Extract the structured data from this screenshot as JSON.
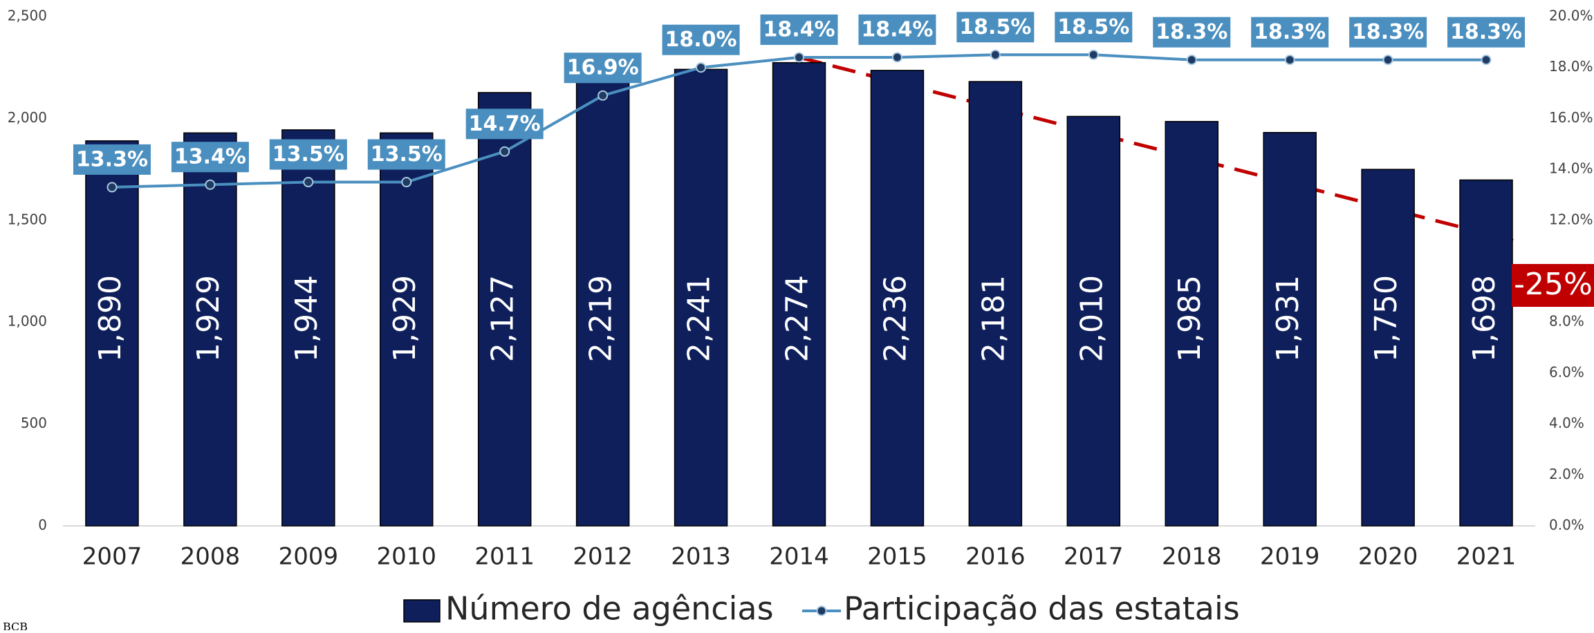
{
  "chart_data": {
    "type": "bar-line",
    "categories": [
      "2007",
      "2008",
      "2009",
      "2010",
      "2011",
      "2012",
      "2013",
      "2014",
      "2015",
      "2016",
      "2017",
      "2018",
      "2019",
      "2020",
      "2021"
    ],
    "series": [
      {
        "name": "Número de agências",
        "type": "bar",
        "color": "#0e1f5b",
        "values": [
          1890,
          1929,
          1944,
          1929,
          2127,
          2219,
          2241,
          2274,
          2236,
          2181,
          2010,
          1985,
          1931,
          1750,
          1698
        ],
        "value_labels": [
          "1,890",
          "1,929",
          "1,944",
          "1,929",
          "2,127",
          "2,219",
          "2,241",
          "2,274",
          "2,236",
          "2,181",
          "2,010",
          "1,985",
          "1,931",
          "1,750",
          "1,698"
        ]
      },
      {
        "name": "Participação das estatais",
        "type": "line",
        "axis": "y2",
        "color": "#4a8fbf",
        "values": [
          13.3,
          13.4,
          13.5,
          13.5,
          14.7,
          16.9,
          18.0,
          18.4,
          18.4,
          18.5,
          18.5,
          18.3,
          18.3,
          18.3,
          18.3
        ],
        "value_labels": [
          "13.3%",
          "13.4%",
          "13.5%",
          "13.5%",
          "14.7%",
          "16.9%",
          "18.0%",
          "18.4%",
          "18.4%",
          "18.5%",
          "18.5%",
          "18.3%",
          "18.3%",
          "18.3%",
          "18.3%"
        ]
      }
    ],
    "ylim": [
      0,
      2500
    ],
    "yticks": [
      0,
      500,
      {
        "value": 1000,
        "label": "1,000"
      },
      {
        "value": 1500,
        "label": "1,500"
      },
      {
        "value": 2000,
        "label": "2,000"
      },
      {
        "value": 2500,
        "label": "2,500"
      }
    ],
    "y2lim": [
      0,
      20
    ],
    "y2ticks": [
      {
        "value": 0,
        "label": "0.0%"
      },
      {
        "value": 2,
        "label": "2.0%"
      },
      {
        "value": 4,
        "label": "4.0%"
      },
      {
        "value": 6,
        "label": "6.0%"
      },
      {
        "value": 8,
        "label": "8.0%"
      },
      {
        "value": 10,
        "label": "10.0%"
      },
      {
        "value": 12,
        "label": "12.0%"
      },
      {
        "value": 14,
        "label": "14.0%"
      },
      {
        "value": 16,
        "label": "16.0%"
      },
      {
        "value": 18,
        "label": "18.0%"
      },
      {
        "value": 20,
        "label": "20.0%"
      }
    ],
    "annotations": [
      "-25%"
    ],
    "source": "BCB",
    "legend": "bottom"
  }
}
